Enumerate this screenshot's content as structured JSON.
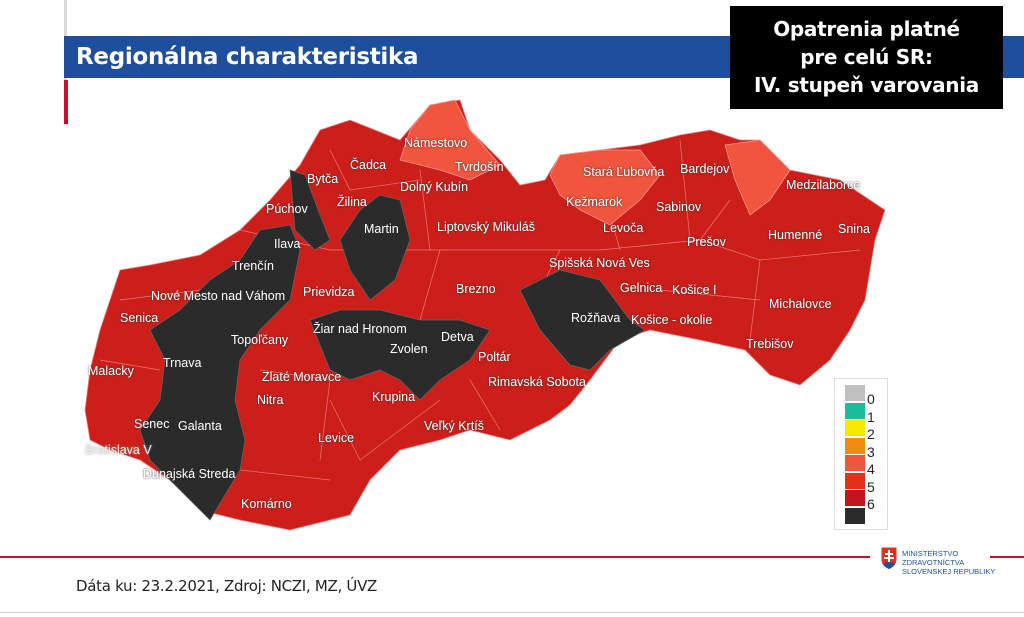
{
  "header": {
    "title": "Regionálna charakteristika"
  },
  "notice": {
    "lines": [
      "Opatrenia platné",
      "pre celú SR:",
      "IV. stupeň varovania"
    ]
  },
  "map": {
    "colors": {
      "level0": "#c0c0c0",
      "level1": "#1abc9c",
      "level2": "#f5e900",
      "level3": "#f28c0f",
      "level4": "#f0553d",
      "level5": "#e0301e",
      "level6_red": "#c1161b",
      "level6": "#2b2b2b",
      "base": "#cc1f1a"
    },
    "districts": [
      {
        "name": "Čadca",
        "level": "5"
      },
      {
        "name": "Námestovo",
        "level": "4"
      },
      {
        "name": "Tvrdošín",
        "level": "4"
      },
      {
        "name": "Bytča",
        "level": "6"
      },
      {
        "name": "Dolný Kubín",
        "level": "5"
      },
      {
        "name": "Žilina",
        "level": "5"
      },
      {
        "name": "Púchov",
        "level": "6"
      },
      {
        "name": "Ilava",
        "level": "6"
      },
      {
        "name": "Martin",
        "level": "6"
      },
      {
        "name": "Liptovský Mikuláš",
        "level": "5"
      },
      {
        "name": "Stará Ľubovňa",
        "level": "4"
      },
      {
        "name": "Bardejov",
        "level": "5"
      },
      {
        "name": "Medzilaborce",
        "level": "4"
      },
      {
        "name": "Kežmarok",
        "level": "4"
      },
      {
        "name": "Sabinov",
        "level": "5"
      },
      {
        "name": "Levoča",
        "level": "5"
      },
      {
        "name": "Prešov",
        "level": "5"
      },
      {
        "name": "Humenné",
        "level": "5"
      },
      {
        "name": "Snina",
        "level": "5"
      },
      {
        "name": "Trenčín",
        "level": "6"
      },
      {
        "name": "Nové Mesto nad Váhom",
        "level": "6"
      },
      {
        "name": "Prievidza",
        "level": "5"
      },
      {
        "name": "Brezno",
        "level": "5"
      },
      {
        "name": "Spišská Nová Ves",
        "level": "5"
      },
      {
        "name": "Gelnica",
        "level": "5"
      },
      {
        "name": "Košice I",
        "level": "5"
      },
      {
        "name": "Michalovce",
        "level": "5"
      },
      {
        "name": "Senica",
        "level": "5"
      },
      {
        "name": "Žiar nad Hronom",
        "level": "6"
      },
      {
        "name": "Rožňava",
        "level": "6"
      },
      {
        "name": "Košice - okolie",
        "level": "5"
      },
      {
        "name": "Topoľčany",
        "level": "5"
      },
      {
        "name": "Detva",
        "level": "6"
      },
      {
        "name": "Trnava",
        "level": "6"
      },
      {
        "name": "Zvolen",
        "level": "6"
      },
      {
        "name": "Poltár",
        "level": "5"
      },
      {
        "name": "Trebišov",
        "level": "5"
      },
      {
        "name": "Malacky",
        "level": "5"
      },
      {
        "name": "Zlaté Moravce",
        "level": "5"
      },
      {
        "name": "Rimavská Sobota",
        "level": "5"
      },
      {
        "name": "Nitra",
        "level": "5"
      },
      {
        "name": "Krupina",
        "level": "5"
      },
      {
        "name": "Senec",
        "level": "5"
      },
      {
        "name": "Galanta",
        "level": "6"
      },
      {
        "name": "Veľký Krtíš",
        "level": "5"
      },
      {
        "name": "Levice",
        "level": "5"
      },
      {
        "name": "Bratislava V",
        "level": "5"
      },
      {
        "name": "Dunajská Streda",
        "level": "6"
      },
      {
        "name": "Komárno",
        "level": "5"
      }
    ]
  },
  "legend": {
    "labels": [
      "0",
      "1",
      "2",
      "3",
      "4",
      "5",
      "6"
    ],
    "swatches": [
      "#c0c0c0",
      "#1abc9c",
      "#f5e900",
      "#f28c0f",
      "#f0553d",
      "#e0301e",
      "#c1161b",
      "#2b2b2b"
    ]
  },
  "footer": {
    "source": "Dáta ku: 23.2.2021, Zdroj: NCZI, MZ, ÚVZ",
    "logo_lines": [
      "MINISTERSTVO",
      "ZDRAVOTNÍCTVA",
      "SLOVENSKEJ REPUBLIKY"
    ]
  }
}
